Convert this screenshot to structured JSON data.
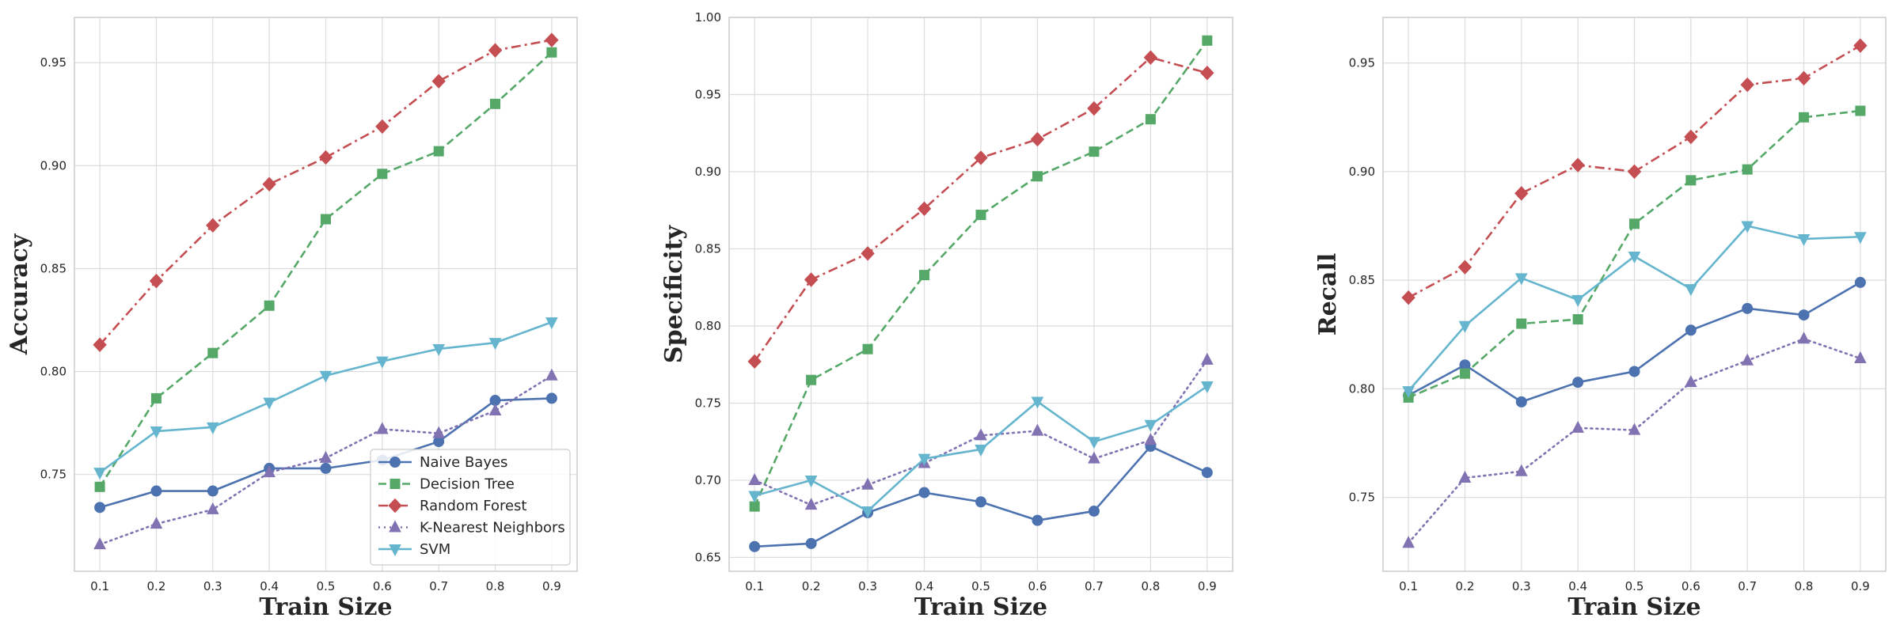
{
  "chart_data": [
    {
      "type": "line",
      "xlabel": "Train Size",
      "ylabel": "Accuracy",
      "x": [
        0.1,
        0.2,
        0.3,
        0.4,
        0.5,
        0.6,
        0.7,
        0.8,
        0.9
      ],
      "xticks": [
        "0.1",
        "0.2",
        "0.3",
        "0.4",
        "0.5",
        "0.6",
        "0.7",
        "0.8",
        "0.9"
      ],
      "xlim": [
        0.055,
        0.945
      ],
      "ylim": [
        0.703,
        0.972
      ],
      "yticks": [
        0.75,
        0.8,
        0.85,
        0.9,
        0.95
      ],
      "ytick_labels": [
        "0.75",
        "0.80",
        "0.85",
        "0.90",
        "0.95"
      ],
      "grid": true,
      "legend": "bottom-right",
      "series": [
        {
          "name": "Naive Bayes",
          "color": "#4C72B0",
          "marker": "circle",
          "dash": "solid",
          "values": [
            0.734,
            0.742,
            0.742,
            0.753,
            0.753,
            0.757,
            0.766,
            0.786,
            0.787
          ]
        },
        {
          "name": "Decision Tree",
          "color": "#55A868",
          "marker": "square",
          "dash": "dashed",
          "values": [
            0.744,
            0.787,
            0.809,
            0.832,
            0.874,
            0.896,
            0.907,
            0.93,
            0.955
          ]
        },
        {
          "name": "Random Forest",
          "color": "#C44E52",
          "marker": "diamond",
          "dash": "dashdot",
          "values": [
            0.813,
            0.844,
            0.871,
            0.891,
            0.904,
            0.919,
            0.941,
            0.956,
            0.961
          ]
        },
        {
          "name": "K-Nearest Neighbors",
          "color": "#8172B2",
          "marker": "triangle-up",
          "dash": "dotted",
          "values": [
            0.716,
            0.726,
            0.733,
            0.751,
            0.758,
            0.772,
            0.77,
            0.781,
            0.798
          ]
        },
        {
          "name": "SVM",
          "color": "#64B5CD",
          "marker": "triangle-down",
          "dash": "solid",
          "values": [
            0.751,
            0.771,
            0.773,
            0.785,
            0.798,
            0.805,
            0.811,
            0.814,
            0.824
          ]
        }
      ]
    },
    {
      "type": "line",
      "xlabel": "Train Size",
      "ylabel": "Specificity",
      "x": [
        0.1,
        0.2,
        0.3,
        0.4,
        0.5,
        0.6,
        0.7,
        0.8,
        0.9
      ],
      "xticks": [
        "0.1",
        "0.2",
        "0.3",
        "0.4",
        "0.5",
        "0.6",
        "0.7",
        "0.8",
        "0.9"
      ],
      "xlim": [
        0.055,
        0.945
      ],
      "ylim": [
        0.641,
        1.0
      ],
      "yticks": [
        0.65,
        0.7,
        0.75,
        0.8,
        0.85,
        0.9,
        0.95,
        1.0
      ],
      "ytick_labels": [
        "0.65",
        "0.70",
        "0.75",
        "0.80",
        "0.85",
        "0.90",
        "0.95",
        "1.00"
      ],
      "grid": true,
      "series": [
        {
          "name": "Naive Bayes",
          "color": "#4C72B0",
          "marker": "circle",
          "dash": "solid",
          "values": [
            0.657,
            0.659,
            0.679,
            0.692,
            0.686,
            0.674,
            0.68,
            0.722,
            0.705
          ]
        },
        {
          "name": "Decision Tree",
          "color": "#55A868",
          "marker": "square",
          "dash": "dashed",
          "values": [
            0.683,
            0.765,
            0.785,
            0.833,
            0.872,
            0.897,
            0.913,
            0.934,
            0.985
          ]
        },
        {
          "name": "Random Forest",
          "color": "#C44E52",
          "marker": "diamond",
          "dash": "dashdot",
          "values": [
            0.777,
            0.83,
            0.847,
            0.876,
            0.909,
            0.921,
            0.941,
            0.974,
            0.964
          ]
        },
        {
          "name": "K-Nearest Neighbors",
          "color": "#8172B2",
          "marker": "triangle-up",
          "dash": "dotted",
          "values": [
            0.7,
            0.684,
            0.697,
            0.711,
            0.729,
            0.732,
            0.714,
            0.726,
            0.778
          ]
        },
        {
          "name": "SVM",
          "color": "#64B5CD",
          "marker": "triangle-down",
          "dash": "solid",
          "values": [
            0.69,
            0.7,
            0.68,
            0.714,
            0.72,
            0.751,
            0.725,
            0.736,
            0.761
          ]
        }
      ]
    },
    {
      "type": "line",
      "xlabel": "Train Size",
      "ylabel": "Recall",
      "x": [
        0.1,
        0.2,
        0.3,
        0.4,
        0.5,
        0.6,
        0.7,
        0.8,
        0.9
      ],
      "xticks": [
        "0.1",
        "0.2",
        "0.3",
        "0.4",
        "0.5",
        "0.6",
        "0.7",
        "0.8",
        "0.9"
      ],
      "xlim": [
        0.055,
        0.945
      ],
      "ylim": [
        0.716,
        0.971
      ],
      "yticks": [
        0.75,
        0.8,
        0.85,
        0.9,
        0.95
      ],
      "ytick_labels": [
        "0.75",
        "0.80",
        "0.85",
        "0.90",
        "0.95"
      ],
      "grid": true,
      "series": [
        {
          "name": "Naive Bayes",
          "color": "#4C72B0",
          "marker": "circle",
          "dash": "solid",
          "values": [
            0.797,
            0.811,
            0.794,
            0.803,
            0.808,
            0.827,
            0.837,
            0.834,
            0.849
          ]
        },
        {
          "name": "Decision Tree",
          "color": "#55A868",
          "marker": "square",
          "dash": "dashed",
          "values": [
            0.796,
            0.807,
            0.83,
            0.832,
            0.876,
            0.896,
            0.901,
            0.925,
            0.928
          ]
        },
        {
          "name": "Random Forest",
          "color": "#C44E52",
          "marker": "diamond",
          "dash": "dashdot",
          "values": [
            0.842,
            0.856,
            0.89,
            0.903,
            0.9,
            0.916,
            0.94,
            0.943,
            0.958
          ]
        },
        {
          "name": "K-Nearest Neighbors",
          "color": "#8172B2",
          "marker": "triangle-up",
          "dash": "dotted",
          "values": [
            0.729,
            0.759,
            0.762,
            0.782,
            0.781,
            0.803,
            0.813,
            0.823,
            0.814
          ]
        },
        {
          "name": "SVM",
          "color": "#64B5CD",
          "marker": "triangle-down",
          "dash": "solid",
          "values": [
            0.799,
            0.829,
            0.851,
            0.841,
            0.861,
            0.846,
            0.875,
            0.869,
            0.87
          ]
        }
      ]
    }
  ]
}
